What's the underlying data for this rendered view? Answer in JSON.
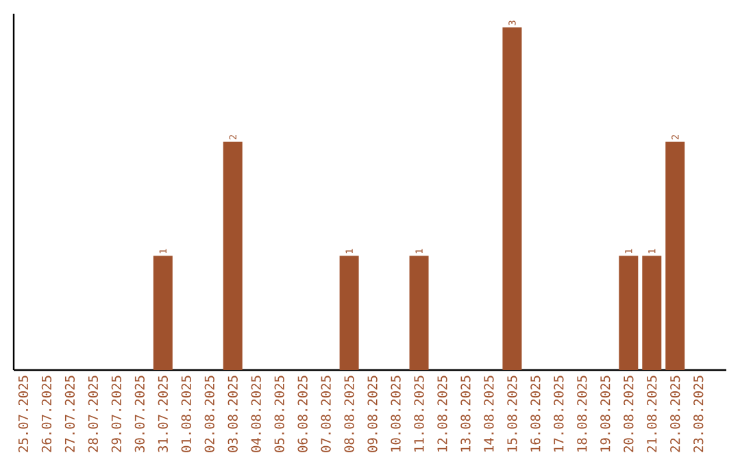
{
  "chart_data": {
    "type": "bar",
    "categories": [
      "25.07.2025",
      "26.07.2025",
      "27.07.2025",
      "28.07.2025",
      "29.07.2025",
      "30.07.2025",
      "31.07.2025",
      "01.08.2025",
      "02.08.2025",
      "03.08.2025",
      "04.08.2025",
      "05.08.2025",
      "06.08.2025",
      "07.08.2025",
      "08.08.2025",
      "09.08.2025",
      "10.08.2025",
      "11.08.2025",
      "12.08.2025",
      "13.08.2025",
      "14.08.2025",
      "15.08.2025",
      "16.08.2025",
      "17.08.2025",
      "18.08.2025",
      "19.08.2025",
      "20.08.2025",
      "21.08.2025",
      "22.08.2025",
      "23.08.2025"
    ],
    "values": [
      0,
      0,
      0,
      0,
      0,
      0,
      1,
      0,
      0,
      2,
      0,
      0,
      0,
      0,
      1,
      0,
      0,
      1,
      0,
      0,
      0,
      3,
      0,
      0,
      0,
      0,
      1,
      1,
      2,
      0
    ],
    "value_labels": [
      null,
      null,
      null,
      null,
      null,
      null,
      "1",
      null,
      null,
      "2",
      null,
      null,
      null,
      null,
      "1",
      null,
      null,
      "1",
      null,
      null,
      null,
      "3",
      null,
      null,
      null,
      null,
      "1",
      "1",
      "2",
      null
    ],
    "color": "#a0522d"
  }
}
